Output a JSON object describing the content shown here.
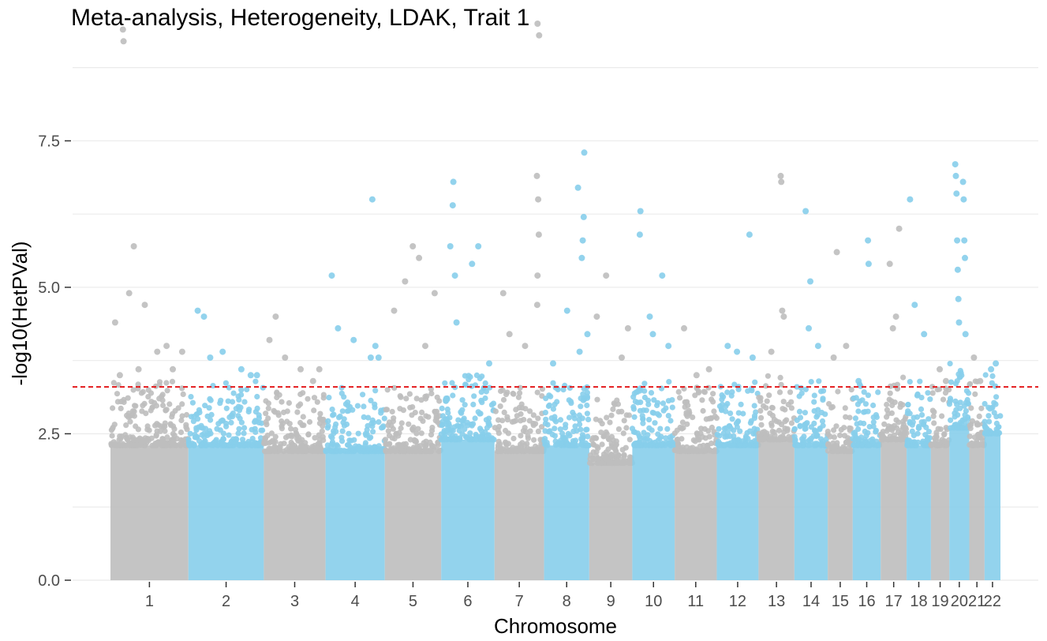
{
  "chart_data": {
    "type": "scatter",
    "subtype": "manhattan",
    "title": "Meta-analysis, Heterogeneity, LDAK, Trait 1",
    "xlabel": "Chromosome",
    "ylabel": "-log10(HetPVal)",
    "ylim": [
      0,
      9.5
    ],
    "yticks": [
      0.0,
      2.5,
      5.0,
      7.5
    ],
    "ytick_labels": [
      "0.0",
      "2.5",
      "5.0",
      "7.5"
    ],
    "grid": true,
    "threshold": 3.3,
    "threshold_color": "#e31a1c",
    "colors": [
      "#bebebe",
      "#87ceeb"
    ],
    "chromosomes": [
      {
        "label": "1",
        "start": 0,
        "end": 250,
        "bulk": 2.3,
        "color": "#bebebe",
        "peaks": [
          [
            15,
            4.4
          ],
          [
            30,
            3.5
          ],
          [
            40,
            9.4
          ],
          [
            42,
            9.2
          ],
          [
            60,
            4.9
          ],
          [
            75,
            5.7
          ],
          [
            110,
            4.7
          ],
          [
            150,
            3.9
          ],
          [
            200,
            3.6
          ],
          [
            230,
            3.9
          ],
          [
            90,
            3.6
          ],
          [
            180,
            4.0
          ]
        ]
      },
      {
        "label": "2",
        "start": 250,
        "end": 492,
        "bulk": 2.3,
        "color": "#87ceeb",
        "peaks": [
          [
            280,
            4.6
          ],
          [
            300,
            4.5
          ],
          [
            320,
            3.8
          ],
          [
            360,
            3.9
          ],
          [
            420,
            3.6
          ],
          [
            450,
            3.5
          ],
          [
            470,
            3.5
          ]
        ]
      },
      {
        "label": "3",
        "start": 492,
        "end": 690,
        "bulk": 2.2,
        "color": "#bebebe",
        "peaks": [
          [
            510,
            4.1
          ],
          [
            530,
            4.5
          ],
          [
            560,
            3.8
          ],
          [
            610,
            3.6
          ],
          [
            650,
            3.4
          ],
          [
            670,
            3.6
          ]
        ]
      },
      {
        "label": "4",
        "start": 690,
        "end": 880,
        "bulk": 2.2,
        "color": "#87ceeb",
        "peaks": [
          [
            710,
            5.2
          ],
          [
            730,
            4.3
          ],
          [
            780,
            4.1
          ],
          [
            840,
            6.5
          ],
          [
            835,
            3.8
          ],
          [
            860,
            3.8
          ],
          [
            850,
            4.0
          ]
        ]
      },
      {
        "label": "5",
        "start": 880,
        "end": 1061,
        "bulk": 2.2,
        "color": "#bebebe",
        "peaks": [
          [
            910,
            4.6
          ],
          [
            945,
            5.1
          ],
          [
            970,
            5.7
          ],
          [
            990,
            5.5
          ],
          [
            1010,
            4.0
          ],
          [
            1040,
            4.9
          ]
        ]
      },
      {
        "label": "6",
        "start": 1061,
        "end": 1232,
        "bulk": 2.4,
        "color": "#87ceeb",
        "peaks": [
          [
            1090,
            5.7
          ],
          [
            1100,
            6.8
          ],
          [
            1098,
            6.4
          ],
          [
            1105,
            5.2
          ],
          [
            1110,
            4.4
          ],
          [
            1160,
            5.4
          ],
          [
            1180,
            5.7
          ],
          [
            1215,
            3.7
          ]
        ]
      },
      {
        "label": "7",
        "start": 1232,
        "end": 1391,
        "bulk": 2.2,
        "color": "#bebebe",
        "peaks": [
          [
            1260,
            4.9
          ],
          [
            1280,
            4.2
          ],
          [
            1330,
            4.0
          ],
          [
            1370,
            9.5
          ],
          [
            1375,
            9.3
          ],
          [
            1368,
            6.9
          ],
          [
            1372,
            6.5
          ],
          [
            1374,
            5.9
          ],
          [
            1370,
            5.2
          ],
          [
            1369,
            4.7
          ]
        ]
      },
      {
        "label": "8",
        "start": 1391,
        "end": 1536,
        "bulk": 2.3,
        "color": "#87ceeb",
        "peaks": [
          [
            1420,
            3.7
          ],
          [
            1465,
            4.6
          ],
          [
            1500,
            6.7
          ],
          [
            1520,
            7.3
          ],
          [
            1518,
            6.2
          ],
          [
            1515,
            5.8
          ],
          [
            1512,
            5.5
          ],
          [
            1530,
            4.2
          ],
          [
            1505,
            3.9
          ]
        ]
      },
      {
        "label": "9",
        "start": 1536,
        "end": 1674,
        "bulk": 2.0,
        "color": "#bebebe",
        "peaks": [
          [
            1560,
            4.5
          ],
          [
            1590,
            5.2
          ],
          [
            1640,
            3.8
          ],
          [
            1660,
            4.3
          ]
        ]
      },
      {
        "label": "10",
        "start": 1674,
        "end": 1810,
        "bulk": 2.3,
        "color": "#87ceeb",
        "peaks": [
          [
            1700,
            6.3
          ],
          [
            1698,
            5.9
          ],
          [
            1730,
            4.5
          ],
          [
            1770,
            5.2
          ],
          [
            1740,
            4.2
          ],
          [
            1790,
            4.0
          ]
        ]
      },
      {
        "label": "11",
        "start": 1810,
        "end": 1945,
        "bulk": 2.2,
        "color": "#bebebe",
        "peaks": [
          [
            1840,
            4.3
          ],
          [
            1880,
            3.5
          ],
          [
            1920,
            3.6
          ]
        ]
      },
      {
        "label": "12",
        "start": 1945,
        "end": 2079,
        "bulk": 2.3,
        "color": "#87ceeb",
        "peaks": [
          [
            1980,
            4.0
          ],
          [
            2010,
            3.9
          ],
          [
            2050,
            5.9
          ],
          [
            2060,
            3.8
          ]
        ]
      },
      {
        "label": "13",
        "start": 2079,
        "end": 2194,
        "bulk": 2.4,
        "color": "#bebebe",
        "peaks": [
          [
            2150,
            6.9
          ],
          [
            2152,
            6.8
          ],
          [
            2155,
            4.6
          ],
          [
            2160,
            4.5
          ],
          [
            2120,
            3.9
          ]
        ]
      },
      {
        "label": "14",
        "start": 2194,
        "end": 2301,
        "bulk": 2.3,
        "color": "#87ceeb",
        "peaks": [
          [
            2230,
            6.3
          ],
          [
            2245,
            5.1
          ],
          [
            2240,
            4.3
          ],
          [
            2270,
            4.0
          ]
        ]
      },
      {
        "label": "15",
        "start": 2301,
        "end": 2381,
        "bulk": 2.2,
        "color": "#bebebe",
        "peaks": [
          [
            2330,
            5.6
          ],
          [
            2320,
            3.8
          ],
          [
            2360,
            4.0
          ]
        ]
      },
      {
        "label": "16",
        "start": 2381,
        "end": 2471,
        "bulk": 2.3,
        "color": "#87ceeb",
        "peaks": [
          [
            2430,
            5.8
          ],
          [
            2432,
            5.4
          ],
          [
            2400,
            3.4
          ]
        ]
      },
      {
        "label": "17",
        "start": 2471,
        "end": 2554,
        "bulk": 2.4,
        "color": "#bebebe",
        "peaks": [
          [
            2500,
            5.4
          ],
          [
            2530,
            6.0
          ],
          [
            2520,
            4.5
          ],
          [
            2510,
            4.3
          ]
        ]
      },
      {
        "label": "18",
        "start": 2554,
        "end": 2632,
        "bulk": 2.3,
        "color": "#87ceeb",
        "peaks": [
          [
            2565,
            6.5
          ],
          [
            2580,
            4.7
          ],
          [
            2610,
            4.2
          ]
        ]
      },
      {
        "label": "19",
        "start": 2632,
        "end": 2691,
        "bulk": 2.3,
        "color": "#bebebe",
        "peaks": [
          [
            2660,
            3.6
          ],
          [
            2680,
            3.4
          ]
        ]
      },
      {
        "label": "20",
        "start": 2691,
        "end": 2755,
        "bulk": 2.6,
        "color": "#87ceeb",
        "peaks": [
          [
            2710,
            7.1
          ],
          [
            2712,
            6.9
          ],
          [
            2714,
            6.6
          ],
          [
            2716,
            5.8
          ],
          [
            2718,
            5.3
          ],
          [
            2720,
            4.8
          ],
          [
            2722,
            4.4
          ],
          [
            2735,
            6.8
          ],
          [
            2737,
            6.5
          ],
          [
            2739,
            5.8
          ],
          [
            2741,
            5.5
          ],
          [
            2743,
            4.2
          ]
        ]
      },
      {
        "label": "21",
        "start": 2755,
        "end": 2804,
        "bulk": 2.3,
        "color": "#bebebe",
        "peaks": [
          [
            2770,
            3.8
          ],
          [
            2790,
            3.4
          ]
        ]
      },
      {
        "label": "22",
        "start": 2804,
        "end": 2855,
        "bulk": 2.5,
        "color": "#87ceeb",
        "peaks": [
          [
            2825,
            3.6
          ],
          [
            2840,
            3.7
          ]
        ]
      }
    ]
  }
}
